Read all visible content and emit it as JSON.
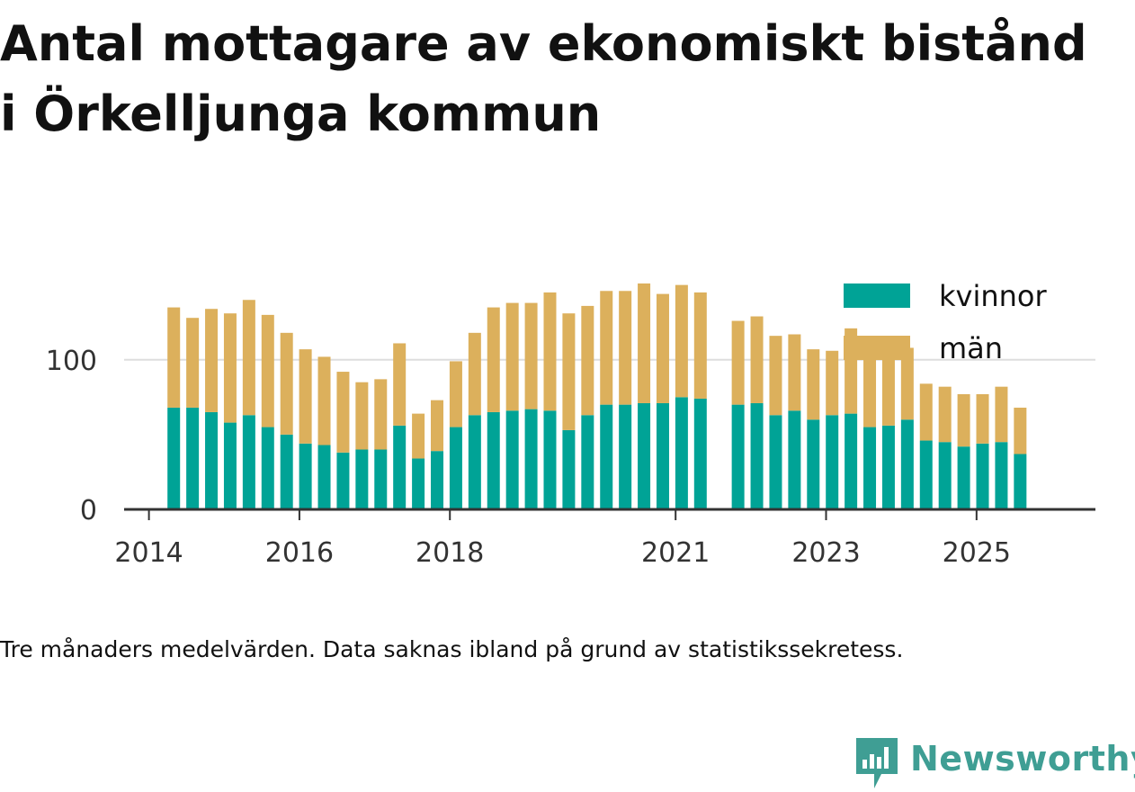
{
  "title_lines": [
    "Antal mottagare av ekonomiskt bistånd",
    "i Örkelljunga kommun"
  ],
  "caption": "Tre månaders medelvärden. Data saknas ibland på grund av statistikssekretess.",
  "brand": {
    "name": "Newsworthy",
    "color": "#3f9e94",
    "icon": "newsworthy-chart-icon"
  },
  "colors": {
    "kvinnor": "#00a396",
    "man": "#dcb05c",
    "grid": "#dddddd",
    "axis": "#333333",
    "text": "#111111"
  },
  "chart_data": {
    "type": "bar",
    "stacked": true,
    "title": "Antal mottagare av ekonomiskt bistånd i Örkelljunga kommun",
    "ylim": [
      0,
      160
    ],
    "yticks": [
      0,
      100
    ],
    "xlim": [
      2013.67,
      2026.58
    ],
    "xticks": [
      2014,
      2016,
      2018,
      2021,
      2023,
      2025
    ],
    "legend_position": "top-right",
    "series": [
      {
        "name": "kvinnor",
        "values": [
          68,
          68,
          65,
          58,
          63,
          55,
          50,
          44,
          43,
          38,
          40,
          40,
          56,
          34,
          39,
          55,
          63,
          65,
          66,
          67,
          66,
          53,
          63,
          70,
          70,
          71,
          71,
          75,
          74,
          70,
          71,
          63,
          66,
          60,
          63,
          64,
          55,
          56,
          60,
          46,
          45,
          42,
          44,
          45,
          37
        ]
      },
      {
        "name": "män",
        "values": [
          67,
          60,
          69,
          73,
          77,
          75,
          68,
          63,
          59,
          54,
          45,
          47,
          55,
          30,
          34,
          44,
          55,
          70,
          72,
          71,
          79,
          78,
          73,
          76,
          76,
          80,
          73,
          75,
          71,
          56,
          58,
          53,
          51,
          47,
          43,
          57,
          49,
          45,
          48,
          38,
          37,
          35,
          33,
          37,
          31
        ]
      }
    ],
    "x": [
      2014.33,
      2014.58,
      2014.83,
      2015.08,
      2015.33,
      2015.58,
      2015.83,
      2016.08,
      2016.33,
      2016.58,
      2016.83,
      2017.08,
      2017.33,
      2017.58,
      2017.83,
      2018.08,
      2018.33,
      2018.58,
      2018.83,
      2019.08,
      2019.33,
      2019.58,
      2019.83,
      2020.08,
      2020.33,
      2020.58,
      2020.83,
      2021.08,
      2021.33,
      2021.83,
      2022.08,
      2022.33,
      2022.58,
      2022.83,
      2023.08,
      2023.33,
      2023.58,
      2023.83,
      2024.08,
      2024.33,
      2024.58,
      2024.83,
      2025.08,
      2025.33,
      2025.58
    ]
  }
}
